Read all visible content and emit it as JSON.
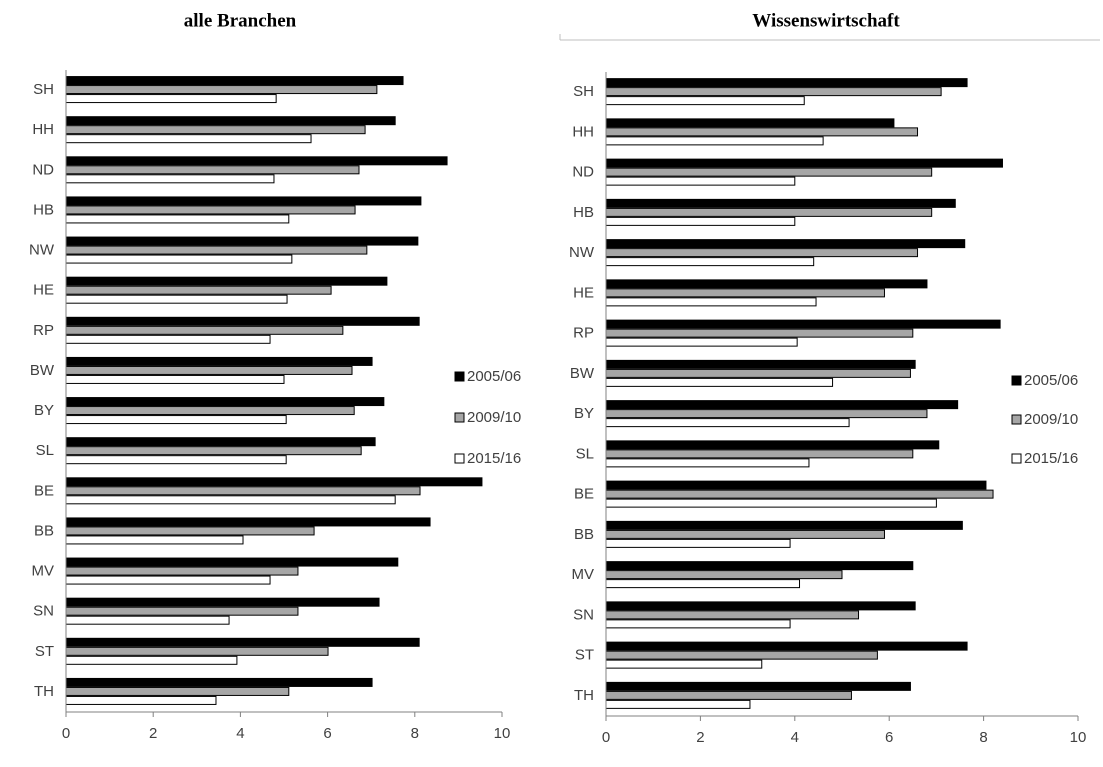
{
  "chart_data": [
    {
      "type": "bar",
      "orientation": "horizontal",
      "title": "alle Branchen",
      "categories": [
        "SH",
        "HH",
        "ND",
        "HB",
        "NW",
        "HE",
        "RP",
        "BW",
        "BY",
        "SL",
        "BE",
        "BB",
        "MV",
        "SN",
        "ST",
        "TH"
      ],
      "series": [
        {
          "name": "2005/06",
          "color": "#000000",
          "values": [
            7.73,
            7.55,
            8.74,
            8.14,
            8.07,
            7.36,
            8.1,
            7.02,
            7.29,
            7.09,
            9.54,
            8.35,
            7.61,
            7.18,
            8.1,
            7.02
          ]
        },
        {
          "name": "2009/10",
          "color": "#a6a6a6",
          "values": [
            7.13,
            6.86,
            6.72,
            6.63,
            6.9,
            6.08,
            6.35,
            6.56,
            6.61,
            6.77,
            8.12,
            5.69,
            5.32,
            5.32,
            6.01,
            5.11
          ]
        },
        {
          "name": "2015/16",
          "color": "#ffffff",
          "values": [
            4.82,
            5.62,
            4.77,
            5.11,
            5.18,
            5.07,
            4.68,
            5.0,
            5.05,
            5.05,
            7.55,
            4.06,
            4.68,
            3.74,
            3.92,
            3.44
          ]
        }
      ],
      "xlim": [
        0,
        10
      ],
      "xticks": [
        0,
        2,
        4,
        6,
        8,
        10
      ],
      "legend": "right"
    },
    {
      "type": "bar",
      "orientation": "horizontal",
      "title": "Wissenswirtschaft",
      "categories": [
        "SH",
        "HH",
        "ND",
        "HB",
        "NW",
        "HE",
        "RP",
        "BW",
        "BY",
        "SL",
        "BE",
        "BB",
        "MV",
        "SN",
        "ST",
        "TH"
      ],
      "series": [
        {
          "name": "2005/06",
          "color": "#000000",
          "values": [
            7.65,
            6.1,
            8.4,
            7.4,
            7.6,
            6.8,
            8.35,
            6.55,
            7.45,
            7.05,
            8.05,
            7.55,
            6.5,
            6.55,
            7.65,
            6.45
          ]
        },
        {
          "name": "2009/10",
          "color": "#a6a6a6",
          "values": [
            7.1,
            6.6,
            6.9,
            6.9,
            6.6,
            5.9,
            6.5,
            6.45,
            6.8,
            6.5,
            8.2,
            5.9,
            5.0,
            5.35,
            5.75,
            5.2
          ]
        },
        {
          "name": "2015/16",
          "color": "#ffffff",
          "values": [
            4.2,
            4.6,
            4.0,
            4.0,
            4.4,
            4.45,
            4.05,
            4.8,
            5.15,
            4.3,
            7.0,
            3.9,
            4.1,
            3.9,
            3.3,
            3.05
          ]
        }
      ],
      "xlim": [
        0,
        10
      ],
      "xticks": [
        0,
        2,
        4,
        6,
        8,
        10
      ],
      "legend": "right"
    }
  ]
}
